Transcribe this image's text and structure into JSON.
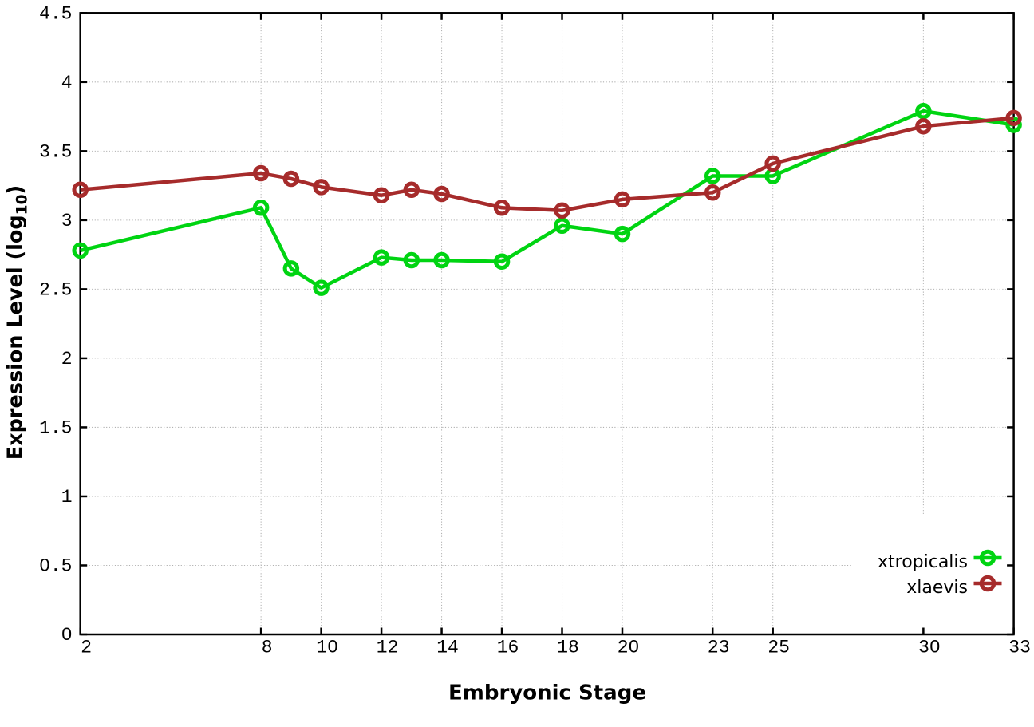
{
  "chart_data": {
    "type": "line",
    "title": "",
    "xlabel": "Embryonic Stage",
    "ylabel_prefix": "Expression Level (log",
    "ylabel_sub": "10",
    "ylabel_suffix": ")",
    "x": [
      2,
      8,
      9,
      10,
      12,
      13,
      14,
      16,
      18,
      20,
      23,
      25,
      30,
      33
    ],
    "series": [
      {
        "name": "xtropicalis",
        "color": "#00d412",
        "values": [
          2.78,
          3.09,
          2.65,
          2.51,
          2.73,
          2.71,
          2.71,
          2.7,
          2.96,
          2.9,
          3.32,
          3.32,
          3.79,
          3.69
        ]
      },
      {
        "name": "xlaevis",
        "color": "#a62b2b",
        "values": [
          3.22,
          3.34,
          3.3,
          3.24,
          3.18,
          3.22,
          3.19,
          3.09,
          3.07,
          3.15,
          3.2,
          3.41,
          3.68,
          3.74
        ]
      }
    ],
    "xticks": [
      2,
      8,
      10,
      12,
      14,
      16,
      18,
      20,
      23,
      25,
      30,
      33
    ],
    "yticks": [
      0,
      0.5,
      1,
      1.5,
      2,
      2.5,
      3,
      3.5,
      4,
      4.5
    ],
    "ytick_labels": [
      "0",
      "0.5",
      "1",
      "1.5",
      "2",
      "2.5",
      "3",
      "3.5",
      "4",
      "4.5"
    ],
    "xlim": [
      2,
      33
    ],
    "ylim": [
      0,
      4.5
    ],
    "grid": true,
    "legend_position": "bottom-right",
    "legend": [
      "xtropicalis",
      "xlaevis"
    ],
    "marker": "open-circle",
    "background_color": "#ffffff",
    "grid_color": "#b0b0b0",
    "axis_color": "#000000"
  }
}
